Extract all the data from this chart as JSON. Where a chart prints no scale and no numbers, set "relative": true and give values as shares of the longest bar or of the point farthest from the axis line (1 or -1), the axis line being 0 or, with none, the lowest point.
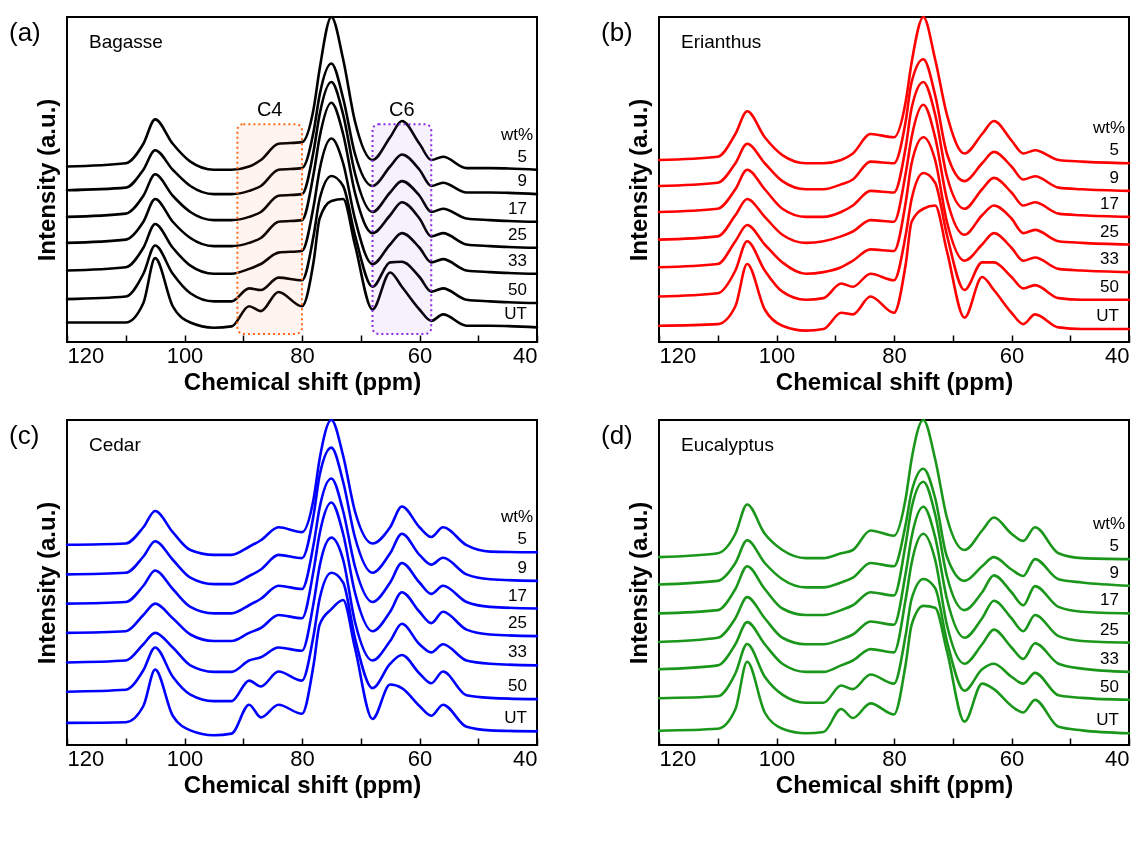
{
  "chart_data": [
    {
      "type": "line",
      "title": "(a)",
      "subtitle": "Bagasse",
      "xlabel": "Chemical shift (ppm)",
      "ylabel": "Intensity (a.u.)",
      "legend_title": "wt%",
      "relative": true,
      "xlim": [
        120,
        40
      ],
      "xticks": [
        120,
        {
          "value": 110,
          "label": null
        },
        100,
        {
          "value": 90,
          "label": null
        },
        80,
        {
          "value": 70,
          "label": null
        },
        60,
        {
          "value": 50,
          "label": null
        },
        40
      ],
      "x": [
        120,
        110,
        107,
        105,
        102,
        99,
        95,
        92,
        89,
        87,
        84,
        80,
        78,
        77,
        75,
        73,
        71,
        68,
        65,
        63,
        60,
        58,
        56,
        52,
        48,
        40
      ],
      "bands": [
        {
          "axis": "x",
          "from": 91,
          "to": 80,
          "label": "C4",
          "color": "#ff6a1a"
        },
        {
          "axis": "x",
          "from": 68,
          "to": 58,
          "label": "C6",
          "color": "#8a2be2"
        }
      ],
      "series": [
        {
          "name": "5",
          "color": "#000000",
          "values": [
            0.54,
            0.55,
            0.61,
            0.685,
            0.61,
            0.555,
            0.53,
            0.53,
            0.54,
            0.56,
            0.61,
            0.615,
            0.72,
            0.84,
            1.0,
            0.87,
            0.68,
            0.56,
            0.63,
            0.68,
            0.61,
            0.56,
            0.57,
            0.535,
            0.535,
            0.53
          ]
        },
        {
          "name": "9",
          "color": "#000000",
          "values": [
            0.467,
            0.475,
            0.53,
            0.59,
            0.53,
            0.48,
            0.455,
            0.455,
            0.465,
            0.48,
            0.53,
            0.535,
            0.65,
            0.76,
            0.857,
            0.75,
            0.58,
            0.48,
            0.54,
            0.577,
            0.53,
            0.48,
            0.49,
            0.46,
            0.46,
            0.455
          ]
        },
        {
          "name": "17",
          "color": "#000000",
          "values": [
            0.385,
            0.395,
            0.45,
            0.516,
            0.45,
            0.4,
            0.375,
            0.375,
            0.385,
            0.4,
            0.45,
            0.455,
            0.59,
            0.7,
            0.8,
            0.7,
            0.52,
            0.4,
            0.46,
            0.495,
            0.45,
            0.4,
            0.41,
            0.38,
            0.375,
            0.37
          ]
        },
        {
          "name": "25",
          "color": "#000000",
          "values": [
            0.305,
            0.315,
            0.37,
            0.44,
            0.37,
            0.32,
            0.295,
            0.295,
            0.305,
            0.32,
            0.37,
            0.375,
            0.52,
            0.63,
            0.736,
            0.64,
            0.46,
            0.335,
            0.39,
            0.43,
            0.38,
            0.325,
            0.335,
            0.3,
            0.295,
            0.29
          ]
        },
        {
          "name": "33",
          "color": "#000000",
          "values": [
            0.22,
            0.23,
            0.29,
            0.363,
            0.29,
            0.235,
            0.21,
            0.21,
            0.225,
            0.24,
            0.275,
            0.28,
            0.42,
            0.53,
            0.626,
            0.55,
            0.38,
            0.24,
            0.3,
            0.335,
            0.29,
            0.245,
            0.255,
            0.22,
            0.215,
            0.21
          ]
        },
        {
          "name": "50",
          "color": "#000000",
          "values": [
            0.132,
            0.14,
            0.21,
            0.297,
            0.21,
            0.15,
            0.125,
            0.125,
            0.165,
            0.16,
            0.198,
            0.19,
            0.33,
            0.44,
            0.511,
            0.48,
            0.33,
            0.17,
            0.245,
            0.247,
            0.2,
            0.155,
            0.165,
            0.13,
            0.125,
            0.12
          ]
        },
        {
          "name": "UT",
          "color": "#000000",
          "values": [
            0.06,
            0.06,
            0.12,
            0.258,
            0.11,
            0.06,
            0.044,
            0.048,
            0.11,
            0.095,
            0.154,
            0.11,
            0.25,
            0.38,
            0.434,
            0.44,
            0.3,
            0.1,
            0.214,
            0.17,
            0.1,
            0.065,
            0.085,
            0.05,
            0.05,
            0.045
          ]
        }
      ]
    },
    {
      "type": "line",
      "title": "(b)",
      "subtitle": "Erianthus",
      "xlabel": "Chemical shift (ppm)",
      "ylabel": "Intensity (a.u.)",
      "legend_title": "wt%",
      "relative": true,
      "xlim": [
        120,
        40
      ],
      "xticks": [
        120,
        {
          "value": 110,
          "label": null
        },
        100,
        {
          "value": 90,
          "label": null
        },
        80,
        {
          "value": 70,
          "label": null
        },
        60,
        {
          "value": 50,
          "label": null
        },
        40
      ],
      "x": [
        120,
        110,
        107,
        105,
        102,
        99,
        95,
        92,
        89,
        87,
        84,
        80,
        78,
        77,
        75,
        73,
        71,
        68,
        65,
        63,
        60,
        58,
        56,
        52,
        48,
        40
      ],
      "series": [
        {
          "name": "5",
          "color": "#ff0000",
          "values": [
            0.56,
            0.57,
            0.64,
            0.71,
            0.63,
            0.575,
            0.55,
            0.55,
            0.56,
            0.58,
            0.64,
            0.63,
            0.74,
            0.86,
            1.0,
            0.87,
            0.7,
            0.58,
            0.64,
            0.68,
            0.62,
            0.58,
            0.59,
            0.56,
            0.555,
            0.55
          ]
        },
        {
          "name": "9",
          "color": "#ff0000",
          "values": [
            0.48,
            0.49,
            0.55,
            0.61,
            0.55,
            0.495,
            0.47,
            0.47,
            0.485,
            0.5,
            0.555,
            0.55,
            0.68,
            0.8,
            0.87,
            0.76,
            0.58,
            0.495,
            0.55,
            0.585,
            0.54,
            0.5,
            0.51,
            0.475,
            0.47,
            0.465
          ]
        },
        {
          "name": "17",
          "color": "#ff0000",
          "values": [
            0.4,
            0.41,
            0.47,
            0.53,
            0.47,
            0.41,
            0.385,
            0.385,
            0.4,
            0.42,
            0.465,
            0.46,
            0.6,
            0.72,
            0.8,
            0.7,
            0.51,
            0.41,
            0.47,
            0.505,
            0.46,
            0.42,
            0.43,
            0.395,
            0.39,
            0.385
          ]
        },
        {
          "name": "25",
          "color": "#ff0000",
          "values": [
            0.315,
            0.325,
            0.39,
            0.44,
            0.385,
            0.33,
            0.305,
            0.31,
            0.325,
            0.34,
            0.375,
            0.37,
            0.52,
            0.63,
            0.73,
            0.63,
            0.44,
            0.33,
            0.39,
            0.42,
            0.38,
            0.335,
            0.345,
            0.31,
            0.305,
            0.3
          ]
        },
        {
          "name": "33",
          "color": "#ff0000",
          "values": [
            0.23,
            0.24,
            0.31,
            0.36,
            0.3,
            0.245,
            0.21,
            0.215,
            0.23,
            0.25,
            0.285,
            0.28,
            0.43,
            0.55,
            0.63,
            0.56,
            0.37,
            0.25,
            0.3,
            0.335,
            0.29,
            0.25,
            0.26,
            0.225,
            0.22,
            0.215
          ]
        },
        {
          "name": "50",
          "color": "#ff0000",
          "values": [
            0.14,
            0.15,
            0.22,
            0.31,
            0.22,
            0.155,
            0.13,
            0.135,
            0.18,
            0.17,
            0.21,
            0.19,
            0.33,
            0.44,
            0.52,
            0.49,
            0.33,
            0.16,
            0.245,
            0.245,
            0.2,
            0.165,
            0.175,
            0.135,
            0.13,
            0.13
          ]
        },
        {
          "name": "UT",
          "color": "#ff0000",
          "values": [
            0.05,
            0.055,
            0.11,
            0.24,
            0.1,
            0.05,
            0.035,
            0.04,
            0.09,
            0.085,
            0.14,
            0.09,
            0.24,
            0.37,
            0.41,
            0.42,
            0.28,
            0.075,
            0.2,
            0.16,
            0.09,
            0.055,
            0.085,
            0.045,
            0.04,
            0.04
          ]
        }
      ]
    },
    {
      "type": "line",
      "title": "(c)",
      "subtitle": "Cedar",
      "xlabel": "Chemical shift (ppm)",
      "ylabel": "Intensity (a.u.)",
      "legend_title": "wt%",
      "relative": true,
      "xlim": [
        120,
        40
      ],
      "xticks": [
        120,
        {
          "value": 110,
          "label": null
        },
        100,
        {
          "value": 90,
          "label": null
        },
        80,
        {
          "value": 70,
          "label": null
        },
        60,
        {
          "value": 50,
          "label": null
        },
        40
      ],
      "x": [
        120,
        110,
        107,
        105,
        102,
        99,
        95,
        92,
        89,
        87,
        84,
        80,
        78,
        77,
        75,
        73,
        71,
        68,
        65,
        63,
        60,
        58,
        56,
        52,
        48,
        40
      ],
      "series": [
        {
          "name": "5",
          "color": "#0000ff",
          "values": [
            0.616,
            0.62,
            0.67,
            0.72,
            0.655,
            0.6,
            0.585,
            0.585,
            0.61,
            0.63,
            0.67,
            0.655,
            0.76,
            0.88,
            1.0,
            0.89,
            0.72,
            0.62,
            0.67,
            0.734,
            0.67,
            0.64,
            0.67,
            0.615,
            0.595,
            0.593
          ]
        },
        {
          "name": "9",
          "color": "#0000ff",
          "values": [
            0.525,
            0.53,
            0.58,
            0.627,
            0.57,
            0.515,
            0.495,
            0.495,
            0.52,
            0.54,
            0.585,
            0.575,
            0.71,
            0.83,
            0.915,
            0.81,
            0.64,
            0.53,
            0.59,
            0.65,
            0.585,
            0.555,
            0.576,
            0.525,
            0.51,
            0.505
          ]
        },
        {
          "name": "17",
          "color": "#0000ff",
          "values": [
            0.435,
            0.44,
            0.49,
            0.537,
            0.48,
            0.425,
            0.405,
            0.405,
            0.43,
            0.45,
            0.49,
            0.48,
            0.62,
            0.73,
            0.82,
            0.72,
            0.55,
            0.44,
            0.5,
            0.56,
            0.5,
            0.465,
            0.49,
            0.44,
            0.425,
            0.42
          ]
        },
        {
          "name": "25",
          "color": "#0000ff",
          "values": [
            0.345,
            0.35,
            0.4,
            0.435,
            0.39,
            0.34,
            0.32,
            0.32,
            0.345,
            0.36,
            0.4,
            0.39,
            0.54,
            0.65,
            0.746,
            0.65,
            0.47,
            0.35,
            0.41,
            0.47,
            0.41,
            0.375,
            0.41,
            0.355,
            0.34,
            0.335
          ]
        },
        {
          "name": "33",
          "color": "#0000ff",
          "values": [
            0.254,
            0.26,
            0.31,
            0.345,
            0.3,
            0.245,
            0.225,
            0.225,
            0.26,
            0.27,
            0.3,
            0.29,
            0.44,
            0.55,
            0.638,
            0.57,
            0.38,
            0.26,
            0.32,
            0.373,
            0.31,
            0.285,
            0.31,
            0.26,
            0.25,
            0.245
          ]
        },
        {
          "name": "50",
          "color": "#0000ff",
          "values": [
            0.164,
            0.17,
            0.23,
            0.3,
            0.21,
            0.155,
            0.135,
            0.135,
            0.198,
            0.18,
            0.226,
            0.198,
            0.34,
            0.45,
            0.53,
            0.5,
            0.33,
            0.175,
            0.25,
            0.277,
            0.22,
            0.19,
            0.226,
            0.153,
            0.145,
            0.141
          ]
        },
        {
          "name": "UT",
          "color": "#0000ff",
          "values": [
            0.068,
            0.07,
            0.12,
            0.232,
            0.09,
            0.045,
            0.03,
            0.035,
            0.124,
            0.085,
            0.124,
            0.096,
            0.25,
            0.37,
            0.418,
            0.446,
            0.3,
            0.08,
            0.186,
            0.175,
            0.12,
            0.09,
            0.124,
            0.056,
            0.045,
            0.042
          ]
        }
      ]
    },
    {
      "type": "line",
      "title": "(d)",
      "subtitle": "Eucalyptus",
      "xlabel": "Chemical shift (ppm)",
      "ylabel": "Intensity (a.u.)",
      "legend_title": "wt%",
      "relative": true,
      "xlim": [
        120,
        40
      ],
      "xticks": [
        120,
        {
          "value": 110,
          "label": null
        },
        100,
        {
          "value": 90,
          "label": null
        },
        80,
        {
          "value": 70,
          "label": null
        },
        60,
        {
          "value": 50,
          "label": null
        },
        40
      ],
      "x": [
        120,
        110,
        107,
        105,
        102,
        99,
        95,
        92,
        89,
        87,
        84,
        80,
        78,
        77,
        75,
        73,
        71,
        68,
        65,
        63,
        60,
        58,
        56,
        52,
        48,
        40
      ],
      "series": [
        {
          "name": "5",
          "color": "#1a961a",
          "values": [
            0.578,
            0.59,
            0.65,
            0.74,
            0.65,
            0.6,
            0.575,
            0.575,
            0.59,
            0.6,
            0.66,
            0.644,
            0.76,
            0.88,
            1.0,
            0.88,
            0.7,
            0.6,
            0.66,
            0.7,
            0.65,
            0.628,
            0.67,
            0.59,
            0.575,
            0.572
          ]
        },
        {
          "name": "9",
          "color": "#1a961a",
          "values": [
            0.494,
            0.505,
            0.56,
            0.63,
            0.56,
            0.51,
            0.485,
            0.485,
            0.5,
            0.515,
            0.56,
            0.55,
            0.68,
            0.78,
            0.85,
            0.76,
            0.58,
            0.505,
            0.55,
            0.578,
            0.54,
            0.52,
            0.572,
            0.51,
            0.5,
            0.49
          ]
        },
        {
          "name": "17",
          "color": "#1a961a",
          "values": [
            0.405,
            0.415,
            0.48,
            0.55,
            0.48,
            0.42,
            0.4,
            0.4,
            0.415,
            0.43,
            0.47,
            0.46,
            0.62,
            0.73,
            0.81,
            0.71,
            0.52,
            0.415,
            0.47,
            0.522,
            0.47,
            0.43,
            0.489,
            0.425,
            0.41,
            0.405
          ]
        },
        {
          "name": "25",
          "color": "#1a961a",
          "values": [
            0.317,
            0.33,
            0.39,
            0.455,
            0.39,
            0.33,
            0.31,
            0.31,
            0.325,
            0.34,
            0.38,
            0.37,
            0.53,
            0.64,
            0.733,
            0.64,
            0.45,
            0.33,
            0.39,
            0.444,
            0.39,
            0.35,
            0.4,
            0.335,
            0.32,
            0.315
          ]
        },
        {
          "name": "33",
          "color": "#1a961a",
          "values": [
            0.233,
            0.245,
            0.31,
            0.378,
            0.31,
            0.25,
            0.225,
            0.225,
            0.245,
            0.26,
            0.295,
            0.285,
            0.45,
            0.56,
            0.65,
            0.57,
            0.37,
            0.25,
            0.31,
            0.355,
            0.3,
            0.265,
            0.313,
            0.25,
            0.235,
            0.225
          ]
        },
        {
          "name": "50",
          "color": "#1a961a",
          "values": [
            0.144,
            0.15,
            0.22,
            0.311,
            0.21,
            0.155,
            0.13,
            0.13,
            0.183,
            0.172,
            0.217,
            0.189,
            0.34,
            0.45,
            0.511,
            0.483,
            0.32,
            0.167,
            0.233,
            0.25,
            0.21,
            0.189,
            0.222,
            0.153,
            0.145,
            0.139
          ]
        },
        {
          "name": "UT",
          "color": "#1a961a",
          "values": [
            0.044,
            0.05,
            0.11,
            0.256,
            0.1,
            0.05,
            0.036,
            0.04,
            0.111,
            0.083,
            0.128,
            0.094,
            0.25,
            0.37,
            0.428,
            0.422,
            0.29,
            0.072,
            0.189,
            0.172,
            0.12,
            0.1,
            0.139,
            0.056,
            0.045,
            0.036
          ]
        }
      ]
    }
  ]
}
